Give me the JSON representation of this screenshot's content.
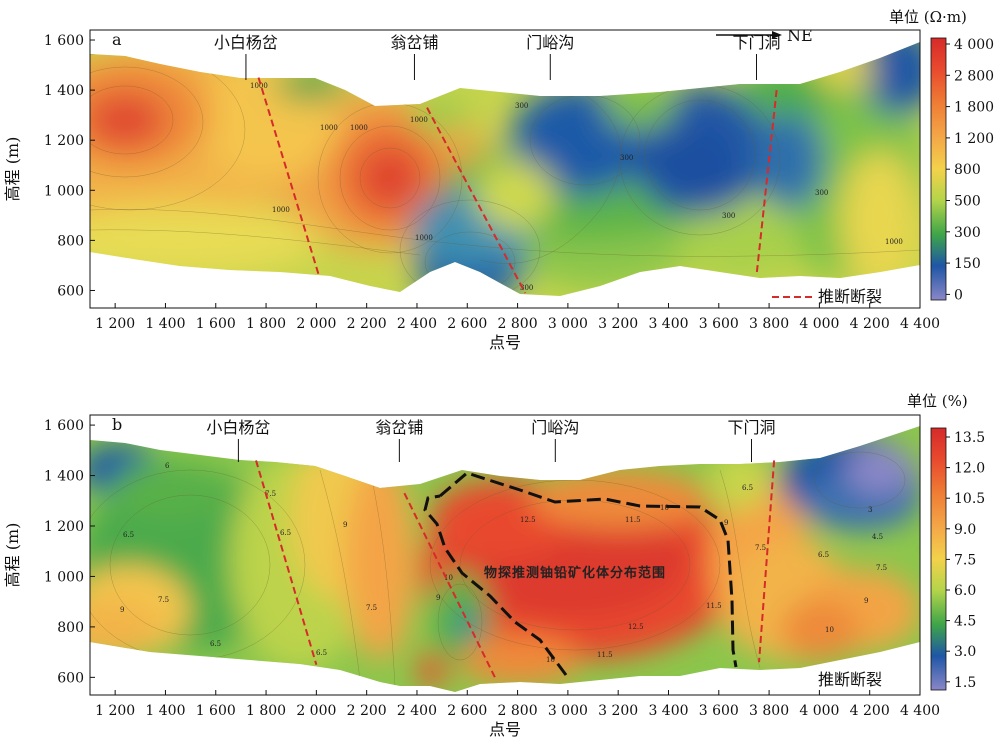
{
  "chart_data": [
    {
      "type": "heatmap",
      "panel_label": "a",
      "xlabel": "点号",
      "ylabel": "高程 (m)",
      "xlim": [
        1100,
        4400
      ],
      "ylim": [
        530,
        1640
      ],
      "x_ticks": [
        1200,
        1400,
        1600,
        1800,
        2000,
        2200,
        2400,
        2600,
        2800,
        3000,
        3200,
        3400,
        3600,
        3800,
        4000,
        4200,
        4400
      ],
      "x_tick_labels": [
        "1 200",
        "1 400",
        "1 600",
        "1 800",
        "2 000",
        "2 200",
        "2 400",
        "2 600",
        "2 800",
        "3 000",
        "3 200",
        "3 400",
        "3 600",
        "3 800",
        "4 000",
        "4 200",
        "4 400"
      ],
      "y_ticks": [
        600,
        800,
        1000,
        1200,
        1400,
        1600
      ],
      "y_tick_labels": [
        "600",
        "800",
        "1 000",
        "1 200",
        "1 400",
        "1 600"
      ],
      "colorbar_title": "单位 (Ω·m)",
      "colorbar_levels": [
        0,
        150,
        300,
        500,
        800,
        1200,
        1800,
        2800,
        4000
      ],
      "colorbar_labels": [
        "4 000",
        "2 800",
        "1 800",
        "1 200",
        "800",
        "500",
        "300",
        "150",
        "0"
      ],
      "direction_label": "NE",
      "places": [
        {
          "name": "小白杨岔",
          "x": 1720
        },
        {
          "name": "翁岔铺",
          "x": 2390
        },
        {
          "name": "门峪沟",
          "x": 2930
        },
        {
          "name": "下门洞",
          "x": 3750
        }
      ],
      "faults": [
        {
          "top": [
            1770,
            1450
          ],
          "bottom": [
            2010,
            660
          ]
        },
        {
          "top": [
            2440,
            1330
          ],
          "bottom": [
            2830,
            590
          ]
        },
        {
          "top": [
            3830,
            1400
          ],
          "bottom": [
            3750,
            660
          ]
        }
      ],
      "contour_labels": [
        "1000",
        "1000",
        "1000",
        "1000",
        "1000",
        "1000",
        "300",
        "300",
        "300",
        "300",
        "300",
        "1000"
      ],
      "legend": "推断断裂"
    },
    {
      "type": "heatmap",
      "panel_label": "b",
      "xlabel": "点号",
      "ylabel": "高程 (m)",
      "xlim": [
        1100,
        4400
      ],
      "ylim": [
        530,
        1640
      ],
      "x_ticks": [
        1200,
        1400,
        1600,
        1800,
        2000,
        2200,
        2400,
        2600,
        2800,
        3000,
        3200,
        3400,
        3600,
        3800,
        4000,
        4200,
        4400
      ],
      "x_tick_labels": [
        "1 200",
        "1 400",
        "1 600",
        "1 800",
        "2 000",
        "2 200",
        "2 400",
        "2 600",
        "2 800",
        "3 000",
        "3 200",
        "3 400",
        "3 600",
        "3 800",
        "4 000",
        "4 200",
        "4 400"
      ],
      "y_ticks": [
        600,
        800,
        1000,
        1200,
        1400,
        1600
      ],
      "y_tick_labels": [
        "600",
        "800",
        "1 000",
        "1 200",
        "1 400",
        "1 600"
      ],
      "colorbar_title": "单位 (%)",
      "colorbar_levels": [
        1.5,
        3.0,
        4.5,
        6.0,
        7.5,
        9.0,
        10.5,
        12.0,
        13.5
      ],
      "colorbar_labels": [
        "13.5",
        "12.0",
        "10.5",
        "9.0",
        "7.5",
        "6.0",
        "4.5",
        "3.0",
        "1.5"
      ],
      "places": [
        {
          "name": "小白杨岔",
          "x": 1690
        },
        {
          "name": "翁岔铺",
          "x": 2330
        },
        {
          "name": "门峪沟",
          "x": 2950
        },
        {
          "name": "下门洞",
          "x": 3730
        }
      ],
      "faults": [
        {
          "top": [
            1760,
            1460
          ],
          "bottom": [
            2000,
            650
          ]
        },
        {
          "top": [
            2350,
            1330
          ],
          "bottom": [
            2710,
            600
          ]
        },
        {
          "top": [
            3820,
            1460
          ],
          "bottom": [
            3760,
            660
          ]
        }
      ],
      "ore_body_label": "物探推测铀铅矿化体分布范围",
      "contour_labels": [
        "6",
        "6.5",
        "9",
        "7.5",
        "6.5",
        "6.5",
        "7.5",
        "6.5",
        "9",
        "7.5",
        "10",
        "9",
        "12.5",
        "11.5",
        "10",
        "11.5",
        "12.5",
        "11.5",
        "10",
        "9",
        "7.5",
        "6.5",
        "3",
        "4.5",
        "6.5",
        "7.5",
        "9",
        "10"
      ],
      "legend": "推断断裂"
    }
  ]
}
